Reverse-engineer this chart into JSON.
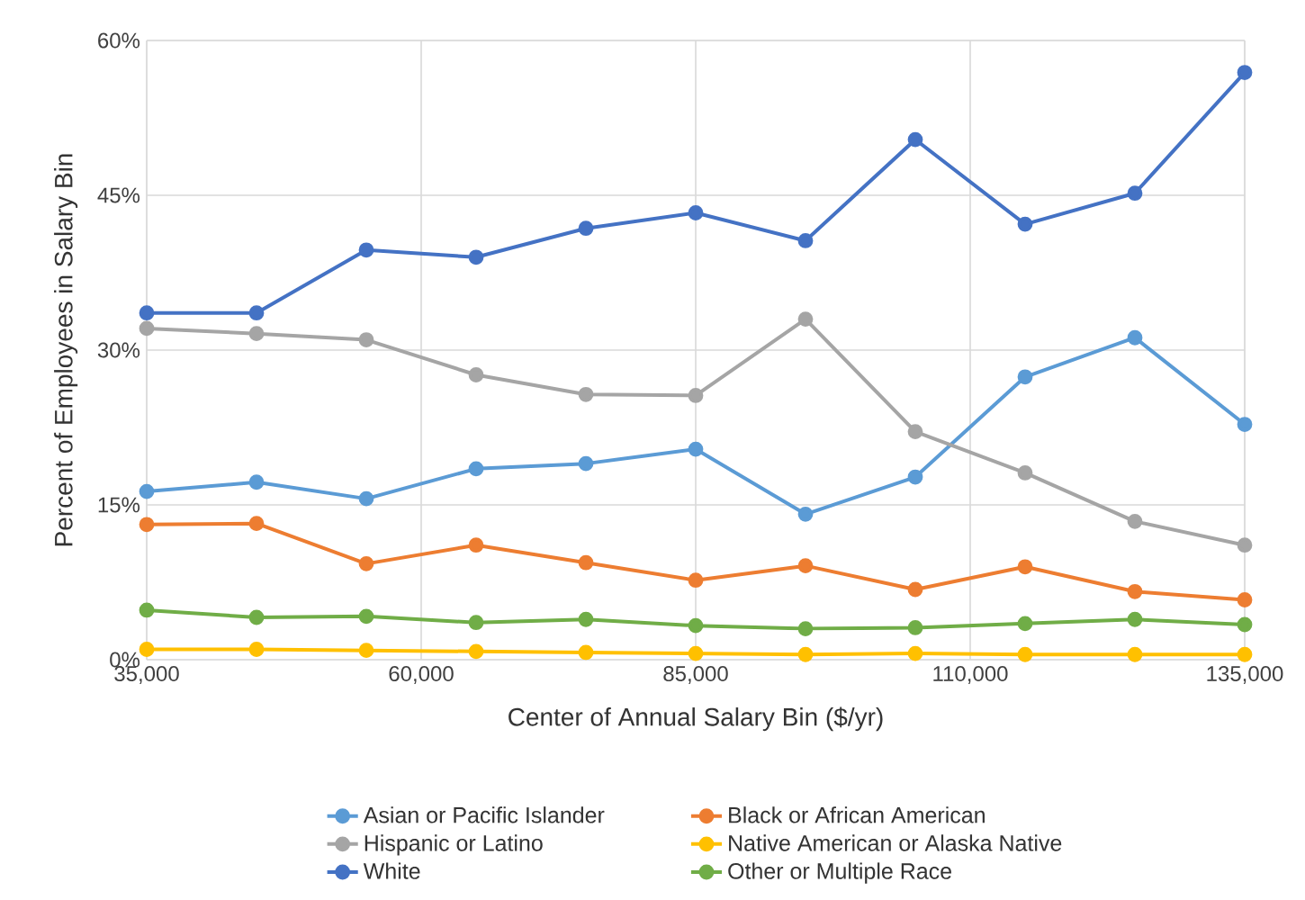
{
  "chart_data": {
    "type": "line",
    "xlabel": "Center of Annual Salary Bin ($/yr)",
    "ylabel": "Percent of Employees in Salary Bin",
    "x": [
      35000,
      45000,
      55000,
      65000,
      75000,
      85000,
      95000,
      105000,
      115000,
      125000,
      135000
    ],
    "series": [
      {
        "name": "Asian or Pacific Islander",
        "color": "#5b9bd5",
        "values": [
          16.3,
          17.2,
          15.6,
          18.5,
          19.0,
          20.4,
          14.1,
          17.7,
          27.4,
          31.2,
          22.8
        ]
      },
      {
        "name": "Black or African American",
        "color": "#ed7d31",
        "values": [
          13.1,
          13.2,
          9.3,
          11.1,
          9.4,
          7.7,
          9.1,
          6.8,
          9.0,
          6.6,
          5.8
        ]
      },
      {
        "name": "Hispanic or Latino",
        "color": "#a5a5a5",
        "values": [
          32.1,
          31.6,
          31.0,
          27.6,
          25.7,
          25.6,
          33.0,
          22.1,
          18.1,
          13.4,
          11.1
        ]
      },
      {
        "name": "Native American or Alaska Native",
        "color": "#ffc000",
        "values": [
          1.0,
          1.0,
          0.9,
          0.8,
          0.7,
          0.6,
          0.5,
          0.6,
          0.5,
          0.5,
          0.5
        ]
      },
      {
        "name": "White",
        "color": "#4472c4",
        "values": [
          33.6,
          33.6,
          39.7,
          39.0,
          41.8,
          43.3,
          40.6,
          50.4,
          42.2,
          45.2,
          56.9
        ]
      },
      {
        "name": "Other or Multiple Race",
        "color": "#70ad47",
        "values": [
          4.8,
          4.1,
          4.2,
          3.6,
          3.9,
          3.3,
          3.0,
          3.1,
          3.5,
          3.9,
          3.4
        ]
      }
    ],
    "xlim": [
      35000,
      135000
    ],
    "xticks": [
      {
        "value": 35000,
        "label": "35,000"
      },
      {
        "value": 60000,
        "label": "60,000"
      },
      {
        "value": 85000,
        "label": "85,000"
      },
      {
        "value": 110000,
        "label": "110,000"
      },
      {
        "value": 135000,
        "label": "135,000"
      }
    ],
    "ylim": [
      0,
      60
    ],
    "yticks": [
      {
        "value": 0,
        "label": "0%"
      },
      {
        "value": 15,
        "label": "15%"
      },
      {
        "value": 30,
        "label": "30%"
      },
      {
        "value": 45,
        "label": "45%"
      },
      {
        "value": 60,
        "label": "60%"
      }
    ],
    "grid": true,
    "legend": "bottom",
    "marker": "circle",
    "line_style": "solid"
  }
}
